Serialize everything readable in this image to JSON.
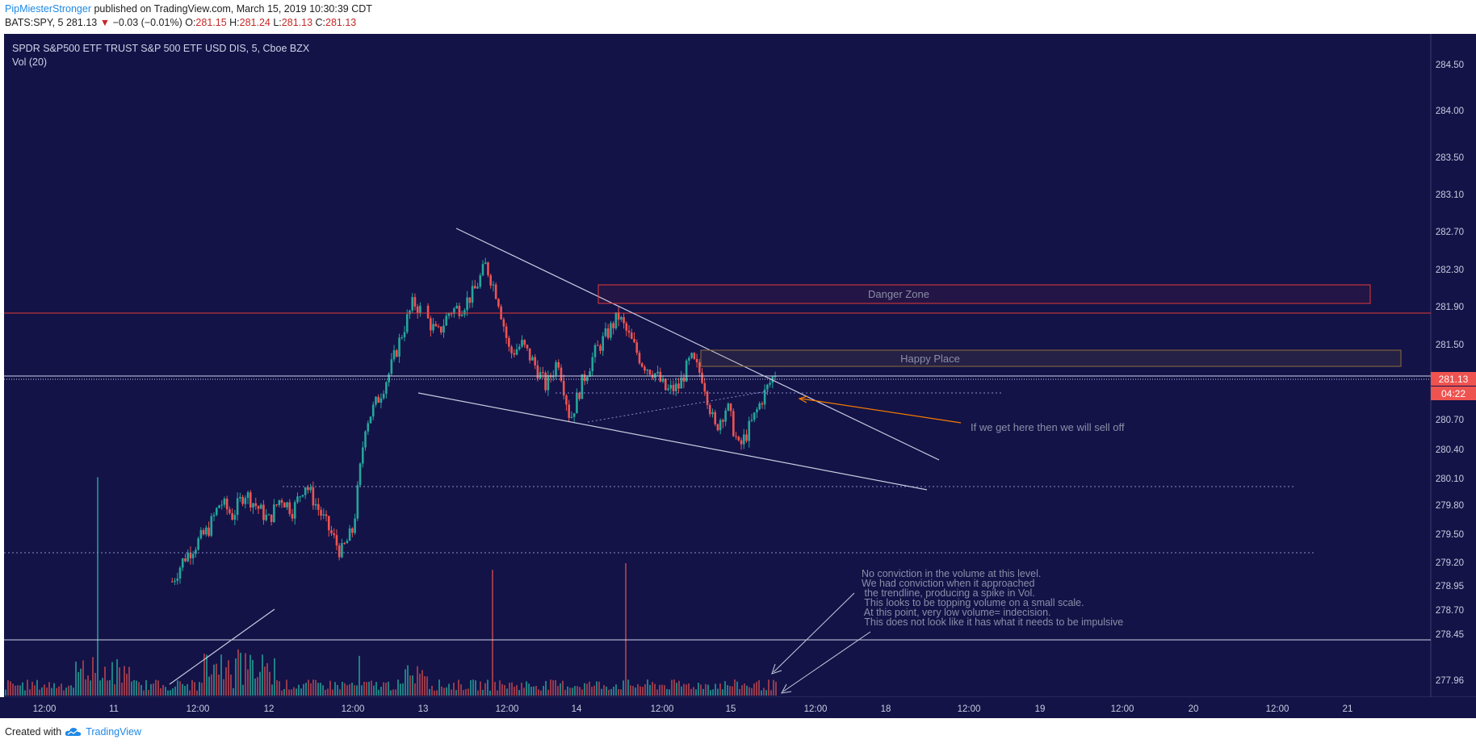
{
  "header": {
    "author": "PipMiesterStronger",
    "published": "published on TradingView.com, March 15, 2019 10:30:39 CDT",
    "symbol": "BATS:SPY, 5",
    "last": "281.13",
    "change_arrow": "▼",
    "change": "−0.03 (−0.01%)",
    "o_label": "O:",
    "o_value": "281.15",
    "h_label": "H:",
    "h_value": "281.24",
    "l_label": "L:",
    "l_value": "281.13",
    "c_label": "C:",
    "c_value": "281.13"
  },
  "footer": {
    "created": "Created with",
    "brand": "TradingView",
    "logo_icon": "tradingview-cloud-icon"
  },
  "colors": {
    "background": "#131347",
    "up": "#26a69a",
    "down": "#ef5350",
    "axis_text": "#c8cce0",
    "danger": "#e53935",
    "happy": "#8d6e3a",
    "annotation": "#8a8fa8",
    "arrow_orange": "#f57c00"
  },
  "chart_data": {
    "type": "candlestick",
    "title": "SPDR S&P500 ETF TRUST S&P 500 ETF USD DIS, 5, Cboe BZX",
    "indicator": "Vol (20)",
    "y_ticks": [
      "284.50",
      "284.00",
      "283.50",
      "283.10",
      "282.70",
      "282.30",
      "281.90",
      "281.50",
      "281.13",
      "280.70",
      "280.40",
      "280.10",
      "279.80",
      "279.50",
      "279.20",
      "278.95",
      "278.70",
      "278.45",
      "277.96"
    ],
    "x_ticks": [
      "12:00",
      "11",
      "12:00",
      "12",
      "12:00",
      "13",
      "12:00",
      "14",
      "12:00",
      "15",
      "12:00",
      "18",
      "12:00",
      "19",
      "12:00",
      "20",
      "12:00",
      "21"
    ],
    "last_price": "281.13",
    "countdown": "04:22",
    "path": [
      279.0,
      279.25,
      279.4,
      279.55,
      279.85,
      279.7,
      279.95,
      279.8,
      279.65,
      279.9,
      279.75,
      280.05,
      279.8,
      279.55,
      279.3,
      279.55,
      280.65,
      280.9,
      281.2,
      281.6,
      281.95,
      281.8,
      281.6,
      281.85,
      281.9,
      282.05,
      282.35,
      282.0,
      281.4,
      281.5,
      281.3,
      281.05,
      281.35,
      280.7,
      281.1,
      281.4,
      281.6,
      281.8,
      281.55,
      281.3,
      281.2,
      281.0,
      281.05,
      281.35,
      281.15,
      280.6,
      280.85,
      280.4,
      280.65,
      280.95,
      281.2
    ],
    "volume_spikes": [
      [
        120,
        0.66
      ],
      [
        610,
        0.38
      ],
      [
        773,
        0.4
      ],
      [
        445,
        0.12
      ]
    ],
    "annotations": [
      {
        "text": "Danger Zone"
      },
      {
        "text": "Happy Place"
      },
      {
        "text": "If we get here then we will sell off"
      },
      {
        "text": "No conviction in the volume at this level.\nWe had conviction when it approached\n the trendline, producing a spike in Vol.\n  This looks to be topping volume on a small scale.\n At this point, very low volume= indecision.\n This does not look like it has what it needs to be impulsive"
      }
    ]
  }
}
